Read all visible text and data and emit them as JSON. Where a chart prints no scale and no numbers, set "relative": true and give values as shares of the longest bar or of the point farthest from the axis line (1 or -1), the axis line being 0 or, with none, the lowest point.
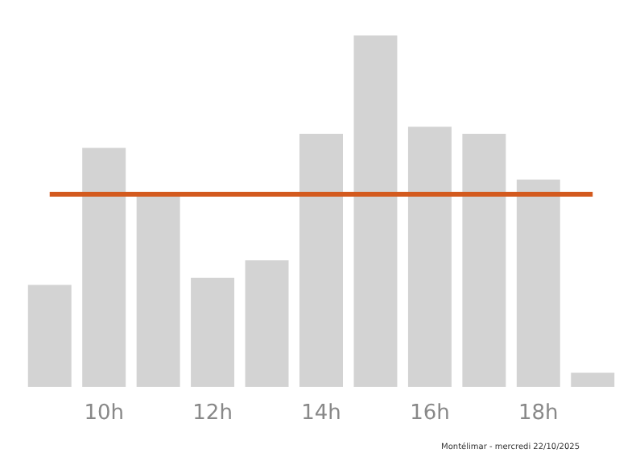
{
  "chart_data": {
    "type": "bar",
    "relative": true,
    "categories": [
      null,
      "10h",
      null,
      "12h",
      null,
      "14h",
      null,
      "16h",
      null,
      "18h",
      null
    ],
    "values": [
      0.29,
      0.68,
      0.55,
      0.31,
      0.36,
      0.72,
      1,
      0.74,
      0.72,
      0.59,
      0.04
    ],
    "color": "#d3d3d3",
    "ref_lines": [
      {
        "axis": "y",
        "value": 0.55,
        "color": "#d35a1e"
      }
    ],
    "annotations": [
      "Montélimar - mercredi 22/10/2025"
    ],
    "grid": false
  }
}
